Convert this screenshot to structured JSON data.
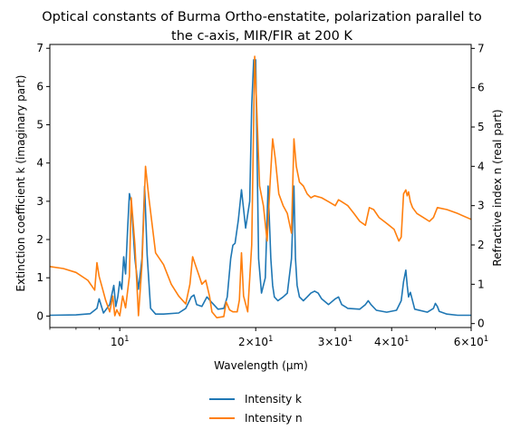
{
  "chart_data": {
    "type": "line",
    "title_lines": [
      "Optical constants of Burma Ortho-enstatite, polarization parallel to",
      "the c-axis, MIR/FIR at 200 K"
    ],
    "xlabel": "Wavelength (μm)",
    "ylabel_left": "Extinction coefficient k (imaginary part)",
    "ylabel_right": "Refractive index n (real part)",
    "x_scale": "log",
    "xlim": [
      7.0,
      60.0
    ],
    "ylim_left": [
      -0.3,
      7.1
    ],
    "ylim_right": [
      -0.1,
      7.1
    ],
    "x_major_ticks": [
      {
        "value": 10,
        "label": "10",
        "exp": "1"
      },
      {
        "value": 20,
        "label": "2×10",
        "exp": "1"
      },
      {
        "value": 30,
        "label": "3×10",
        "exp": "1"
      },
      {
        "value": 40,
        "label": "4×10",
        "exp": "1"
      },
      {
        "value": 60,
        "label": "6×10",
        "exp": "1"
      }
    ],
    "y_left_ticks": [
      0,
      1,
      2,
      3,
      4,
      5,
      6,
      7
    ],
    "y_right_ticks": [
      0,
      1,
      2,
      3,
      4,
      5,
      6,
      7
    ],
    "legend_position": "below-center",
    "series": [
      {
        "name": "Intensity k",
        "axis": "left",
        "color": "#1f77b4",
        "x": [
          7.0,
          8.0,
          8.6,
          8.9,
          9.0,
          9.2,
          9.5,
          9.7,
          9.8,
          9.9,
          10.0,
          10.1,
          10.2,
          10.3,
          10.4,
          10.5,
          10.6,
          10.8,
          11.0,
          11.2,
          11.35,
          11.5,
          11.7,
          12.0,
          12.5,
          13.5,
          14.0,
          14.4,
          14.6,
          14.8,
          15.2,
          15.6,
          16.0,
          16.5,
          17.0,
          17.3,
          17.6,
          17.8,
          18.0,
          18.3,
          18.6,
          19.0,
          19.4,
          19.6,
          19.8,
          20.0,
          20.3,
          20.6,
          21.0,
          21.3,
          21.6,
          21.8,
          22.0,
          22.4,
          23.0,
          23.5,
          24.0,
          24.3,
          24.5,
          24.7,
          25.0,
          25.5,
          26.0,
          26.5,
          27.0,
          27.5,
          28.0,
          29.0,
          30.0,
          30.5,
          31.0,
          32.0,
          34.0,
          35.0,
          35.5,
          36.0,
          37.0,
          39.0,
          41.0,
          42.0,
          42.5,
          43.0,
          43.3,
          43.6,
          44.0,
          45.0,
          48.0,
          49.5,
          50.0,
          50.5,
          51.0,
          53.0,
          56.0,
          60.0
        ],
        "values": [
          0.02,
          0.03,
          0.06,
          0.2,
          0.45,
          0.08,
          0.3,
          0.8,
          0.25,
          0.5,
          0.9,
          0.7,
          1.55,
          1.1,
          2.2,
          3.2,
          3.0,
          1.5,
          0.7,
          1.5,
          3.4,
          1.6,
          0.2,
          0.05,
          0.05,
          0.08,
          0.2,
          0.5,
          0.55,
          0.3,
          0.25,
          0.5,
          0.35,
          0.18,
          0.2,
          0.5,
          1.5,
          1.85,
          1.9,
          2.5,
          3.3,
          2.3,
          3.0,
          5.5,
          6.7,
          6.7,
          1.5,
          0.6,
          1.0,
          3.4,
          1.5,
          0.8,
          0.5,
          0.4,
          0.5,
          0.6,
          1.5,
          3.4,
          1.5,
          0.8,
          0.5,
          0.4,
          0.5,
          0.6,
          0.65,
          0.6,
          0.45,
          0.3,
          0.45,
          0.5,
          0.3,
          0.2,
          0.18,
          0.3,
          0.4,
          0.3,
          0.15,
          0.1,
          0.15,
          0.4,
          0.9,
          1.2,
          0.8,
          0.5,
          0.62,
          0.18,
          0.1,
          0.2,
          0.33,
          0.25,
          0.12,
          0.05,
          0.02,
          0.02
        ]
      },
      {
        "name": "Intensity n",
        "axis": "right",
        "color": "#ff7f0e",
        "x": [
          7.0,
          7.5,
          8.0,
          8.5,
          8.8,
          8.9,
          9.0,
          9.15,
          9.3,
          9.5,
          9.65,
          9.75,
          9.85,
          10.0,
          10.15,
          10.3,
          10.5,
          10.6,
          10.8,
          11.0,
          11.2,
          11.4,
          11.6,
          11.8,
          12.0,
          12.5,
          13.0,
          13.5,
          14.0,
          14.3,
          14.5,
          14.8,
          15.0,
          15.2,
          15.5,
          15.8,
          16.0,
          16.4,
          17.0,
          17.2,
          17.5,
          17.8,
          18.2,
          18.4,
          18.6,
          18.8,
          19.2,
          19.6,
          19.9,
          20.1,
          20.4,
          20.8,
          21.2,
          21.5,
          21.8,
          22.1,
          22.5,
          23.0,
          23.5,
          24.0,
          24.3,
          24.6,
          25.0,
          25.5,
          26.0,
          26.5,
          27.0,
          28.0,
          29.0,
          30.0,
          30.5,
          31.0,
          32.0,
          33.0,
          34.0,
          35.0,
          35.7,
          36.5,
          37.5,
          39.0,
          40.5,
          41.5,
          42.0,
          42.5,
          43.0,
          43.3,
          43.6,
          44.0,
          44.5,
          45.5,
          47.0,
          48.5,
          49.5,
          50.5,
          53.0,
          56.0,
          60.0
        ],
        "values": [
          1.45,
          1.4,
          1.3,
          1.1,
          0.85,
          1.55,
          1.2,
          0.9,
          0.6,
          0.3,
          0.7,
          0.2,
          0.35,
          0.2,
          0.7,
          0.4,
          1.2,
          3.2,
          2.0,
          0.2,
          1.5,
          4.0,
          3.2,
          2.5,
          1.8,
          1.5,
          1.0,
          0.7,
          0.5,
          1.0,
          1.7,
          1.4,
          1.2,
          1.0,
          1.1,
          0.7,
          0.3,
          0.15,
          0.18,
          0.55,
          0.35,
          0.3,
          0.3,
          0.6,
          1.8,
          0.7,
          0.3,
          2.0,
          6.8,
          5.5,
          3.5,
          3.0,
          2.1,
          3.5,
          4.7,
          4.2,
          3.3,
          3.0,
          2.8,
          2.3,
          4.7,
          4.0,
          3.6,
          3.5,
          3.3,
          3.2,
          3.25,
          3.2,
          3.1,
          3.0,
          3.15,
          3.1,
          3.0,
          2.8,
          2.6,
          2.5,
          2.95,
          2.9,
          2.7,
          2.55,
          2.4,
          2.1,
          2.2,
          3.3,
          3.4,
          3.25,
          3.35,
          3.1,
          2.95,
          2.8,
          2.7,
          2.6,
          2.7,
          2.95,
          2.9,
          2.8,
          2.65
        ]
      }
    ]
  }
}
